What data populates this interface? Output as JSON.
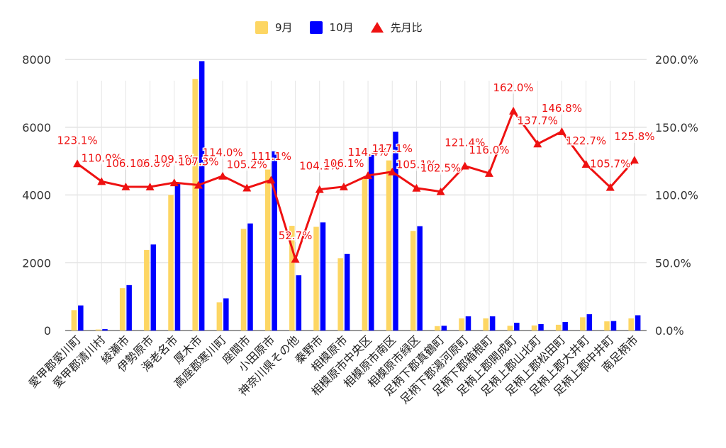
{
  "chart_data": {
    "type": "bar",
    "categories": [
      "愛甲郡愛川町",
      "愛甲郡清川村",
      "綾瀬市",
      "伊勢原市",
      "海老名市",
      "厚木市",
      "高座郡寒川町",
      "座間市",
      "小田原市",
      "神奈川県その他",
      "秦野市",
      "相模原市",
      "相模原市中央区",
      "相模原市南区",
      "相模原市緑区",
      "足柄下郡真鶴町",
      "足柄下郡湯河原町",
      "足柄下郡箱根町",
      "足柄上郡開成町",
      "足柄上郡山北町",
      "足柄上郡松田町",
      "足柄上郡大井町",
      "足柄上郡中井町",
      "南足柄市"
    ],
    "series": [
      {
        "name": "9月",
        "color": "#fdd663",
        "axis": "left",
        "values": [
          600,
          30,
          1250,
          2380,
          4000,
          7420,
          830,
          3000,
          4750,
          3090,
          3060,
          2130,
          4530,
          5020,
          2940,
          130,
          360,
          360,
          140,
          150,
          170,
          390,
          270,
          360
        ]
      },
      {
        "name": "10月",
        "color": "#0000ff",
        "axis": "left",
        "values": [
          740,
          40,
          1340,
          2540,
          4370,
          7950,
          950,
          3160,
          5290,
          1630,
          3190,
          2260,
          5180,
          5870,
          3080,
          140,
          420,
          420,
          230,
          190,
          250,
          480,
          280,
          450
        ]
      },
      {
        "name": "先月比",
        "type": "line",
        "color": "#ee1111",
        "axis": "right",
        "values": [
          123.1,
          110.0,
          106.1,
          106.0,
          109.1,
          107.3,
          114.0,
          105.2,
          111.1,
          52.7,
          104.1,
          106.1,
          114.4,
          117.1,
          105.1,
          102.5,
          121.4,
          116.0,
          162.0,
          137.7,
          146.8,
          122.7,
          105.7,
          125.8
        ]
      }
    ],
    "data_labels": [
      "123.1%",
      "110.0%",
      "106.1%",
      "106.0%",
      "109.1%",
      "107.3%",
      "114.0%",
      "105.2%",
      "111.1%",
      "52.7%",
      "104.1%",
      "106.1%",
      "114.4%",
      "117.1%",
      "105.1%",
      "102.5%",
      "121.4%",
      "116.0%",
      "162.0%",
      "137.7%",
      "146.8%",
      "122.7%",
      "105.7%",
      "125.8%"
    ],
    "y_left": {
      "min": 0,
      "max": 8000,
      "ticks": [
        "0",
        "2000",
        "4000",
        "6000",
        "8000"
      ]
    },
    "y_right": {
      "min": 0,
      "max": 200,
      "ticks": [
        "0.0%",
        "50.0%",
        "100.0%",
        "150.0%",
        "200.0%"
      ]
    },
    "grid": true,
    "legend": "top"
  }
}
